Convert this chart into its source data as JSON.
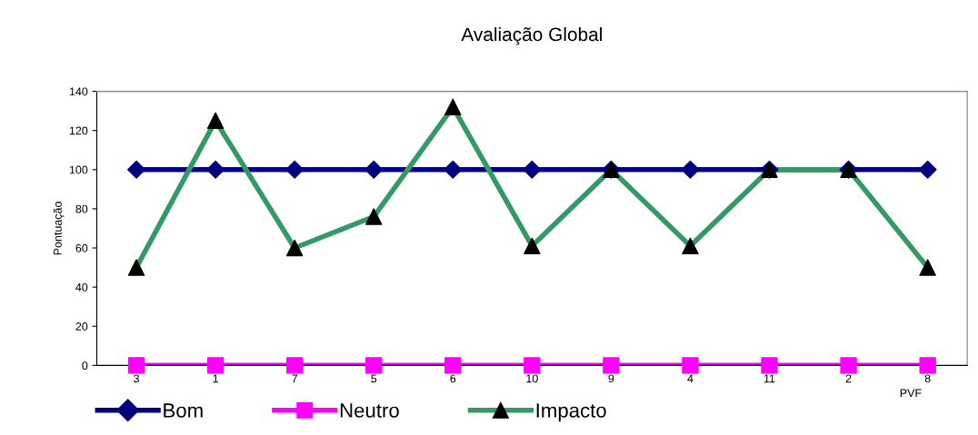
{
  "chart_data": {
    "type": "line",
    "title": "Avaliação Global",
    "xlabel": "PVF",
    "ylabel": "Pontuação",
    "categories": [
      "3",
      "1",
      "7",
      "5",
      "6",
      "10",
      "9",
      "4",
      "11",
      "2",
      "8"
    ],
    "series": [
      {
        "name": "Bom",
        "color": "#000080",
        "marker": "diamond",
        "values": [
          100,
          100,
          100,
          100,
          100,
          100,
          100,
          100,
          100,
          100,
          100
        ]
      },
      {
        "name": "Neutro",
        "color": "#ff00ff",
        "marker": "square",
        "values": [
          0,
          0,
          0,
          0,
          0,
          0,
          0,
          0,
          0,
          0,
          0
        ]
      },
      {
        "name": "Impacto",
        "color": "#339966",
        "marker": "triangle",
        "colors": [
          "#000000",
          "#000000",
          "#000000",
          "#000000",
          "#000000",
          "#000000",
          "#000000",
          "#000000",
          "#000000",
          "#000000",
          "#000000"
        ],
        "values": [
          50,
          125,
          60,
          76,
          132,
          61,
          100,
          61,
          100,
          100,
          50
        ]
      }
    ],
    "ylim": [
      0,
      140
    ],
    "yticks": [
      0,
      20,
      40,
      60,
      80,
      100,
      120,
      140
    ],
    "grid": false,
    "legend": "bottom"
  }
}
